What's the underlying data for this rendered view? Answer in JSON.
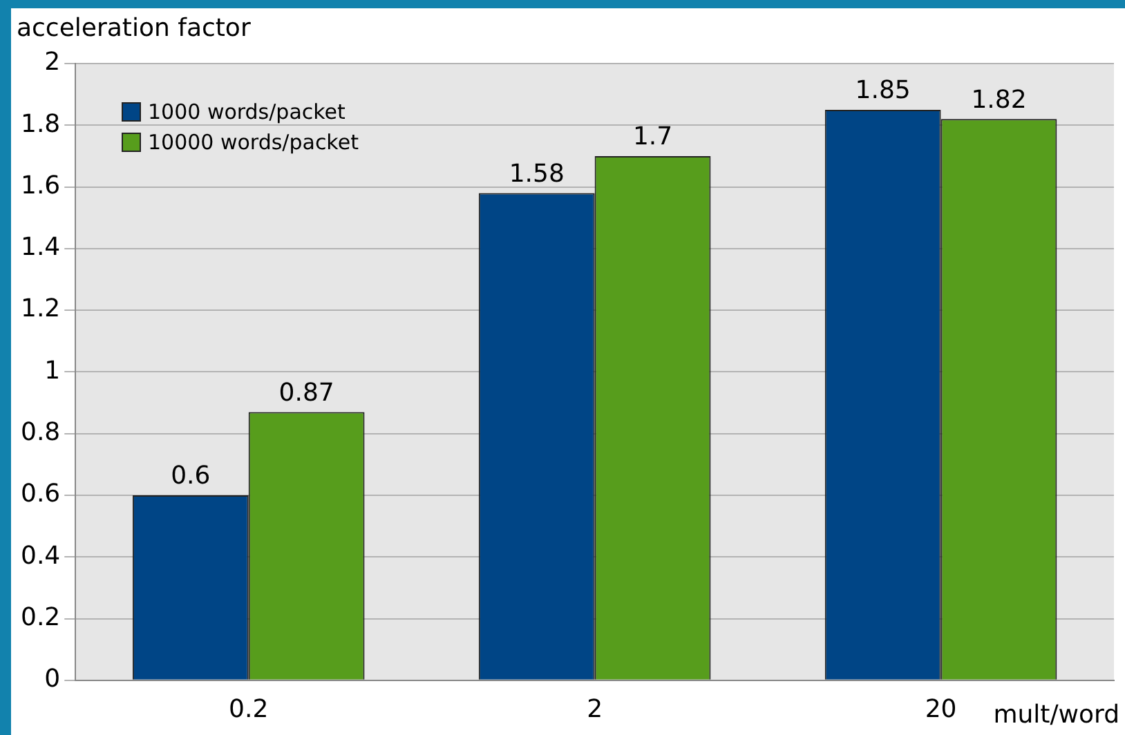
{
  "chart_data": {
    "type": "bar",
    "ylabel": "acceleration factor",
    "xlabel": "mult/word",
    "categories": [
      "0.2",
      "2",
      "20"
    ],
    "series": [
      {
        "name": "1000 words/packet",
        "color": "#004586",
        "values": [
          0.6,
          1.58,
          1.85
        ]
      },
      {
        "name": "10000 words/packet",
        "color": "#579d1c",
        "values": [
          0.87,
          1.7,
          1.82
        ]
      }
    ],
    "ylim": [
      0,
      2
    ],
    "yticks": [
      0,
      0.2,
      0.4,
      0.6,
      0.8,
      1,
      1.2,
      1.4,
      1.6,
      1.8,
      2
    ],
    "grid": "y",
    "legend": "top left",
    "data_labels": true
  }
}
